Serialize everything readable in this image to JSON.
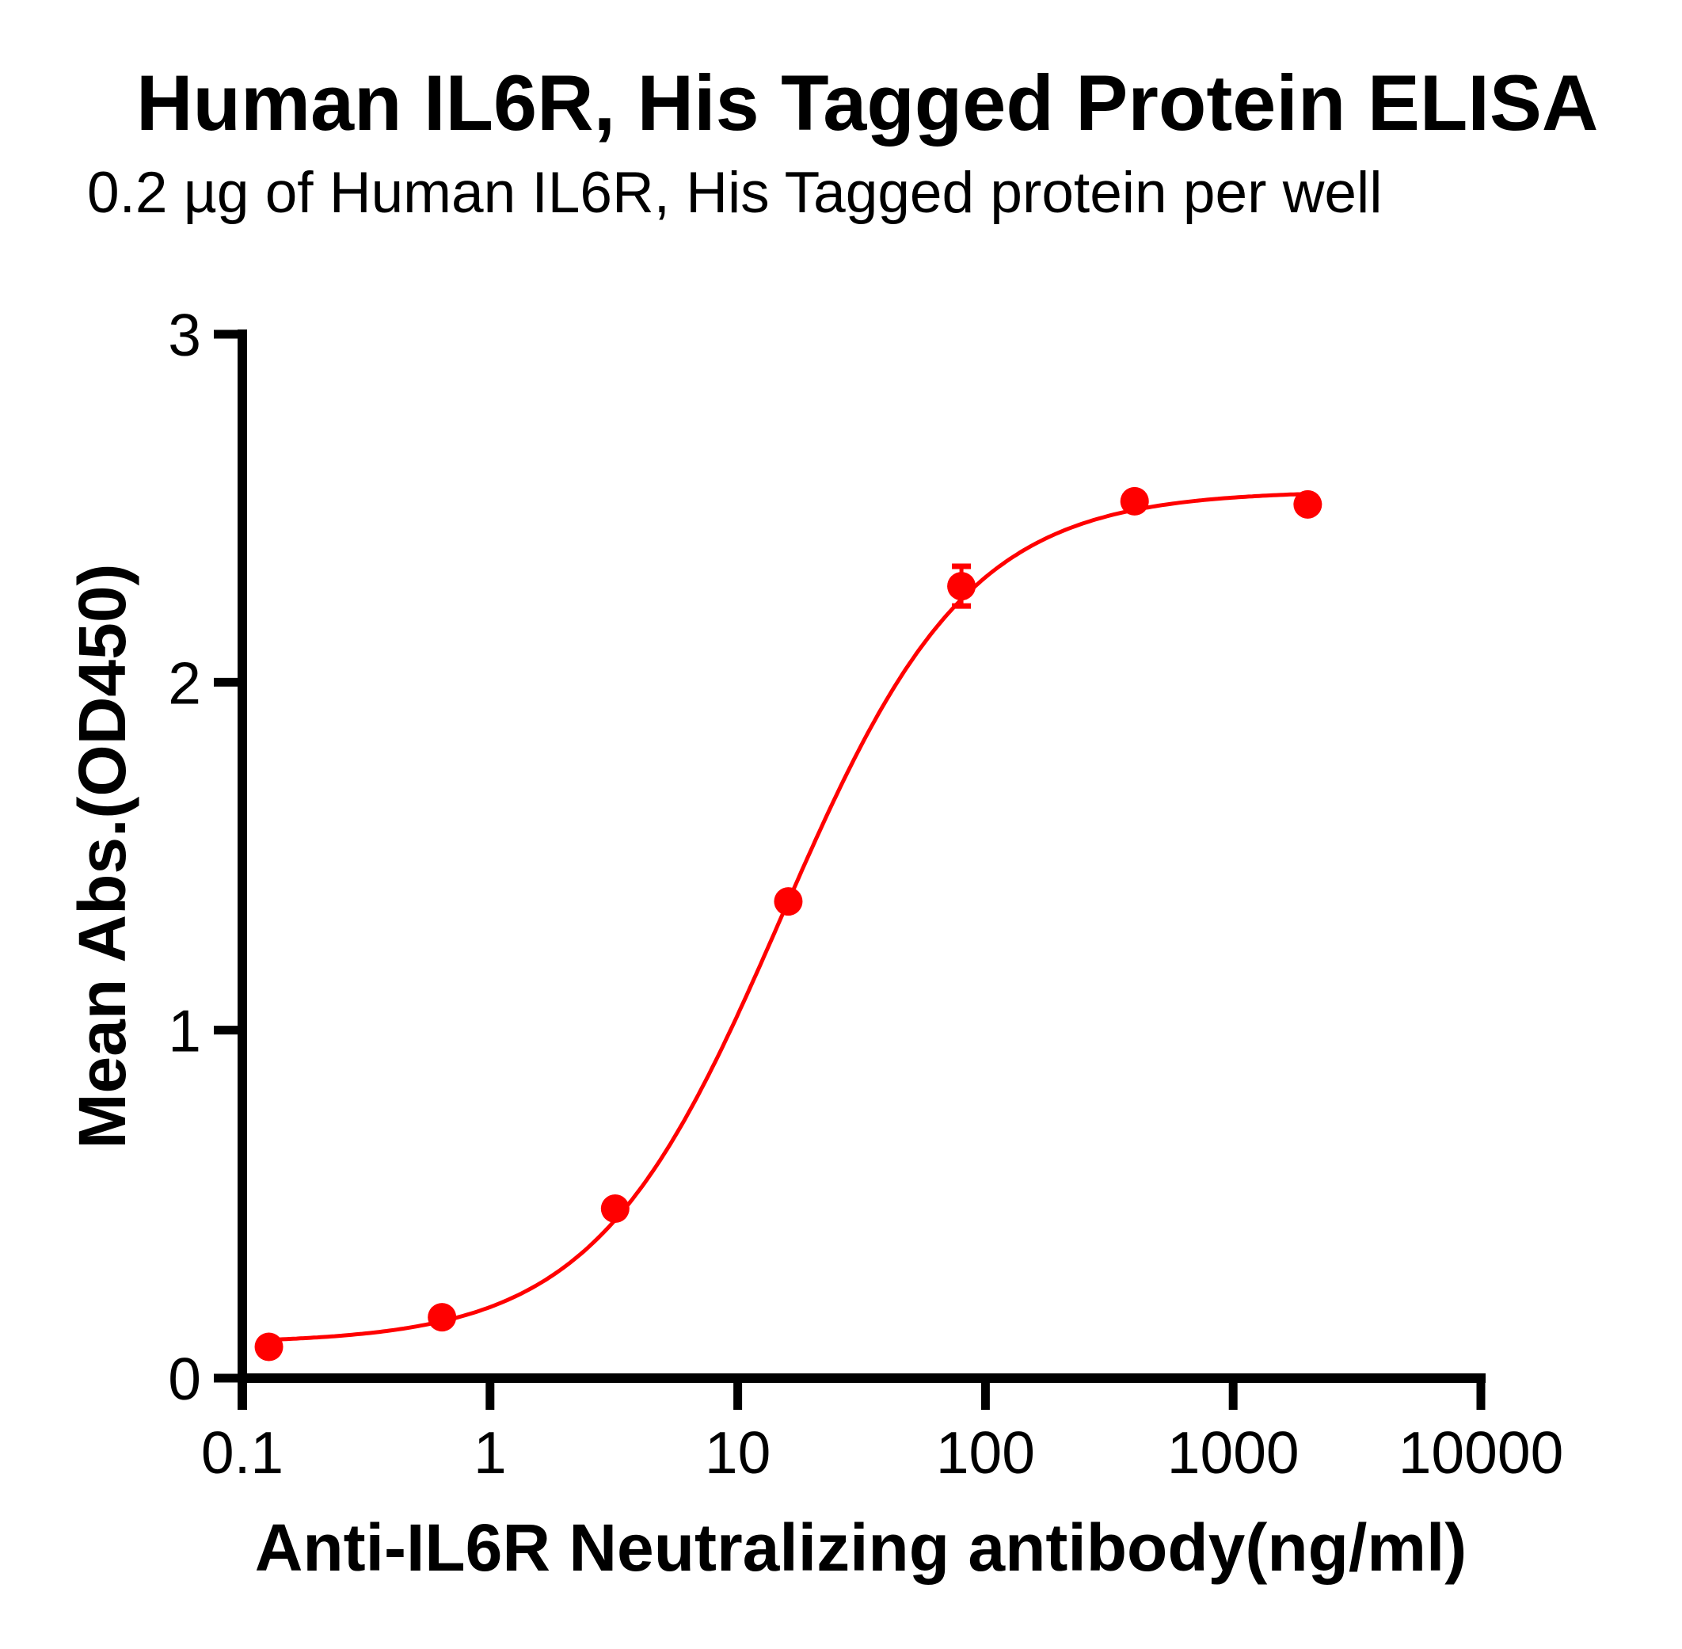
{
  "title": "Human IL6R,  His Tagged Protein ELISA",
  "subtitle": "0.2 µg of Human IL6R, His Tagged protein per well",
  "colors": {
    "series": "#ff0000",
    "axis": "#000000",
    "background": "#ffffff"
  },
  "chart_data": {
    "type": "scatter",
    "title": "Human IL6R,  His Tagged Protein ELISA",
    "subtitle": "0.2 µg of Human IL6R, His Tagged protein per well",
    "xlabel": "Anti-IL6R Neutralizing antibody(ng/ml)",
    "ylabel": "Mean Abs.(OD450)",
    "xscale": "log",
    "xlim": [
      0.1,
      10000
    ],
    "ylim": [
      0,
      3
    ],
    "xticks": [
      "0.1",
      "1",
      "10",
      "100",
      "1000",
      "10000"
    ],
    "yticks": [
      "0",
      "1",
      "2",
      "3"
    ],
    "grid": false,
    "legend": null,
    "series": [
      {
        "name": "Human IL6R, His Tagged Protein",
        "color": "#ff0000",
        "marker": "circle",
        "x": [
          0.128,
          0.64,
          3.2,
          16,
          80,
          400,
          2000
        ],
        "y": [
          0.09,
          0.175,
          0.487,
          1.37,
          2.276,
          2.52,
          2.511
        ],
        "error": [
          0,
          0,
          0,
          0,
          0.057,
          0,
          0
        ],
        "fit": {
          "model": "4PL",
          "bottom": 0.1,
          "top": 2.55,
          "ec50": 15,
          "hill": 1.15,
          "x_range": [
            0.128,
            2000
          ]
        }
      }
    ]
  }
}
